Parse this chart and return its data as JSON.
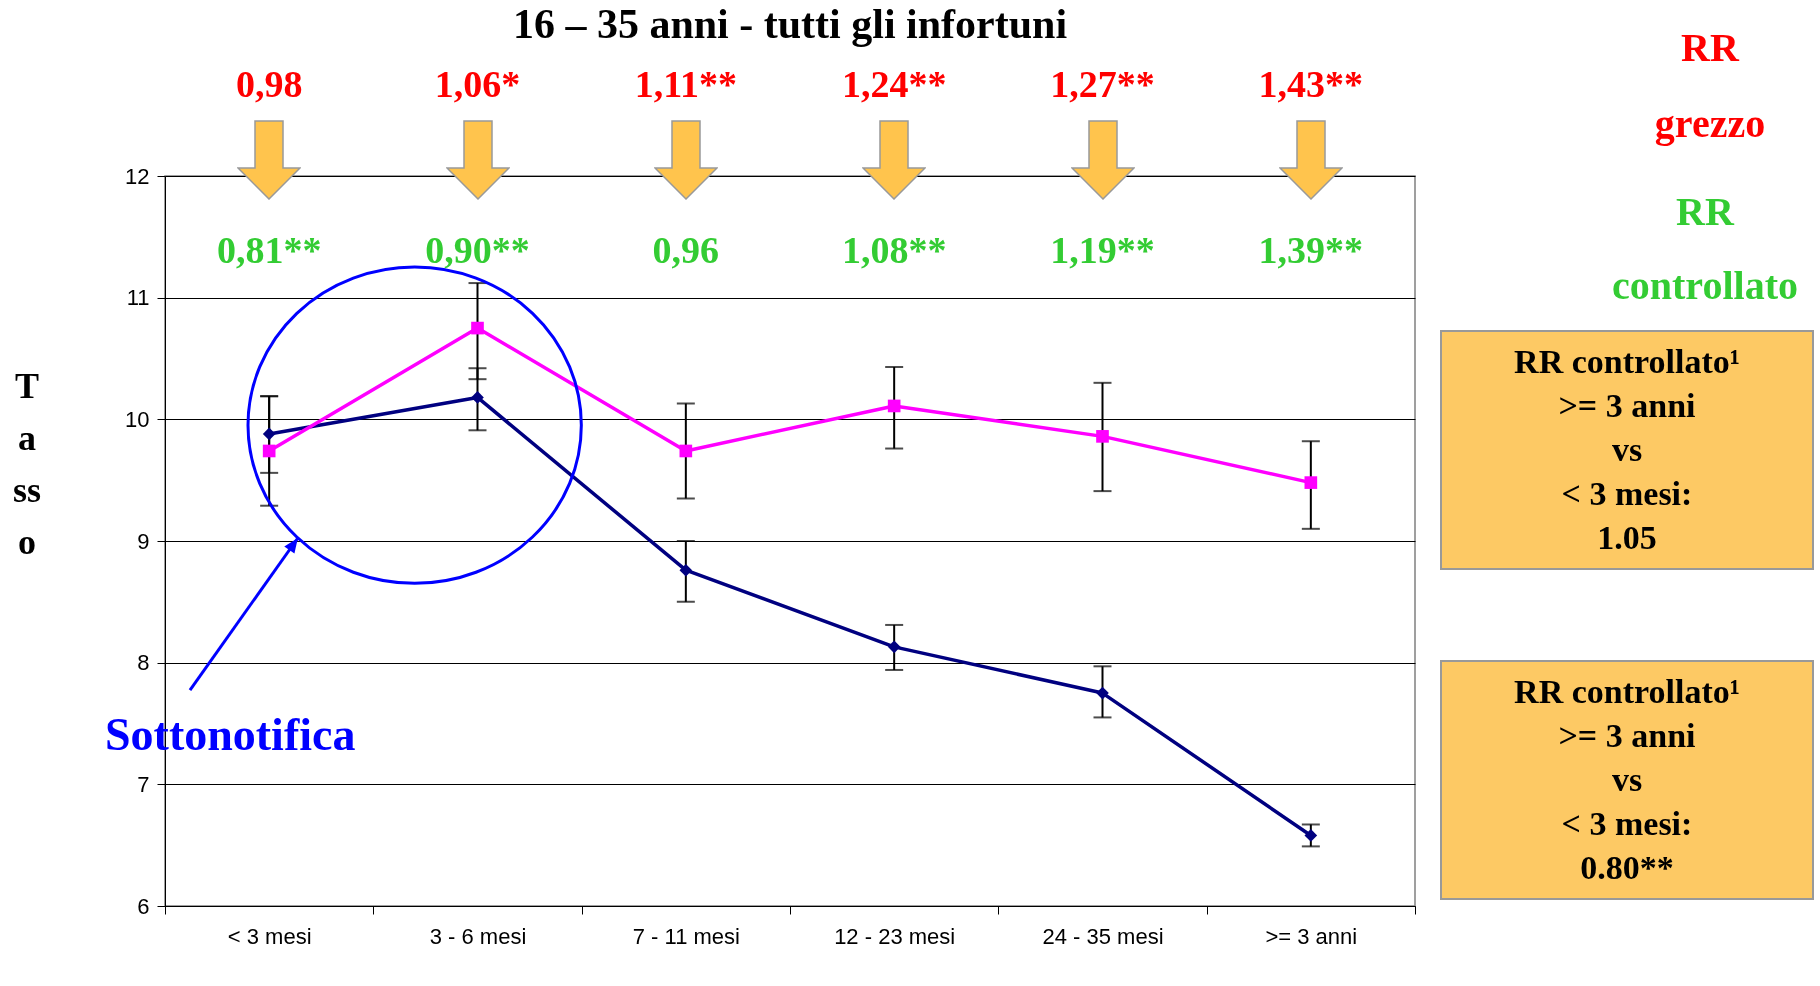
{
  "chart_data": {
    "type": "line",
    "title": "16 – 35 anni - tutti gli infortuni",
    "ylabel": "Tasso",
    "categories": [
      "< 3 mesi",
      "3 - 6 mesi",
      "7 - 11 mesi",
      "12 - 23 mesi",
      "24 - 35 mesi",
      ">= 3 anni"
    ],
    "series": [
      {
        "color": "#000080",
        "marker": "diamond",
        "values": [
          9.88,
          10.18,
          8.76,
          8.13,
          7.75,
          6.58
        ],
        "errors": [
          [
            9.56,
            10.19
          ],
          [
            9.91,
            10.42
          ],
          [
            8.5,
            9.0
          ],
          [
            7.94,
            8.31
          ],
          [
            7.55,
            7.97
          ],
          [
            6.49,
            6.67
          ]
        ]
      },
      {
        "color": "#ff00ff",
        "marker": "square",
        "values": [
          9.74,
          10.75,
          9.74,
          10.11,
          9.86,
          9.48
        ],
        "errors": [
          [
            9.29,
            10.19
          ],
          [
            10.33,
            11.12
          ],
          [
            9.35,
            10.13
          ],
          [
            9.76,
            10.43
          ],
          [
            9.41,
            10.3
          ],
          [
            9.1,
            9.82
          ]
        ]
      }
    ],
    "ylim": [
      6,
      12
    ],
    "yticks": [
      6,
      7,
      8,
      9,
      10,
      11,
      12
    ],
    "grid": "y",
    "line_style": "solid",
    "annotations": [
      "0,98",
      "1,06*",
      "1,11**",
      "1,24**",
      "1,27**",
      "1,43**",
      "0,81**",
      "0,90**",
      "0,96",
      "1,08**",
      "1,19**",
      "1,39**",
      "RR grezzo",
      "RR controllato",
      "RR controllato¹\n>= 3 anni\nvs\n< 3 mesi:\n1.05",
      "RR controllato¹\n>= 3 anni\nvs\n< 3 mesi:\n0.80**",
      "Sottonotifica"
    ]
  }
}
